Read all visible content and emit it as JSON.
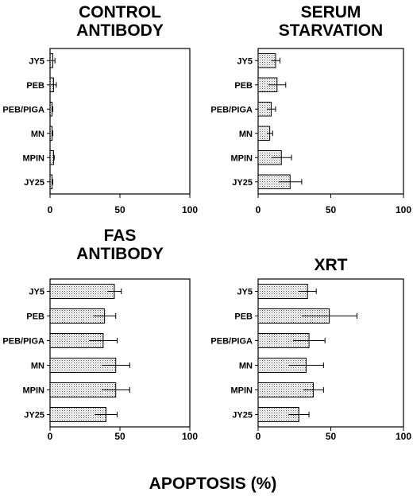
{
  "figure": {
    "xlabel": "APOPTOSIS (%)"
  },
  "chart_data": [
    {
      "type": "bar",
      "orientation": "horizontal",
      "title_lines": [
        "CONTROL",
        "ANTIBODY"
      ],
      "categories": [
        "JY5",
        "PEB",
        "PEB/PIGA",
        "MN",
        "MPIN",
        "JY25"
      ],
      "values": [
        2,
        2.5,
        1.5,
        1.5,
        2.5,
        1.5
      ],
      "errors": [
        1.5,
        2,
        0.5,
        0.5,
        0.5,
        0.5
      ],
      "xlim": [
        0,
        100
      ],
      "xticks": [
        0,
        50,
        100
      ],
      "grid": false
    },
    {
      "type": "bar",
      "orientation": "horizontal",
      "title_lines": [
        "SERUM",
        "STARVATION"
      ],
      "categories": [
        "JY5",
        "PEB",
        "PEB/PIGA",
        "MN",
        "MPIN",
        "JY25"
      ],
      "values": [
        12,
        13,
        9,
        8,
        16,
        22
      ],
      "errors": [
        3,
        6,
        3,
        2,
        7,
        8
      ],
      "xlim": [
        0,
        100
      ],
      "xticks": [
        0,
        50,
        100
      ],
      "grid": false
    },
    {
      "type": "bar",
      "orientation": "horizontal",
      "title_lines": [
        "FAS",
        "ANTIBODY"
      ],
      "categories": [
        "JY5",
        "PEB",
        "PEB/PIGA",
        "MN",
        "MPIN",
        "JY25"
      ],
      "values": [
        46,
        39,
        38,
        47,
        47,
        40
      ],
      "errors": [
        5,
        8,
        10,
        10,
        10,
        8
      ],
      "xlim": [
        0,
        100
      ],
      "xticks": [
        0,
        50,
        100
      ],
      "grid": false
    },
    {
      "type": "bar",
      "orientation": "horizontal",
      "title_lines": [
        "XRT"
      ],
      "categories": [
        "JY5",
        "PEB",
        "PEB/PIGA",
        "MN",
        "MPIN",
        "JY25"
      ],
      "values": [
        34,
        49,
        35,
        33,
        38,
        28
      ],
      "errors": [
        6,
        19,
        11,
        12,
        7,
        7
      ],
      "xlim": [
        0,
        100
      ],
      "xticks": [
        0,
        50,
        100
      ],
      "grid": false
    }
  ]
}
